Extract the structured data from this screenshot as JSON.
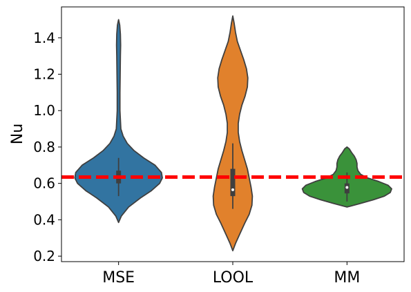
{
  "chart_data": {
    "type": "violin",
    "title": "",
    "xlabel": "",
    "ylabel": "Nu",
    "ylim": [
      0.17,
      1.57
    ],
    "yticks": [
      0.2,
      0.4,
      0.6,
      0.8,
      1.0,
      1.2,
      1.4
    ],
    "ytick_labels": [
      "0.2",
      "0.4",
      "0.6",
      "0.8",
      "1.0",
      "1.2",
      "1.4"
    ],
    "categories": [
      "MSE",
      "LOOL",
      "MM"
    ],
    "grid": false,
    "reference_line": {
      "y": 0.635,
      "color": "#ff0000",
      "style": "dashed"
    },
    "series": [
      {
        "category": "MSE",
        "color": "#3274a1",
        "min": 0.385,
        "max": 1.5,
        "q1": 0.6,
        "median": 0.635,
        "q3": 0.67,
        "whisker_low": 0.53,
        "whisker_high": 0.74,
        "density": [
          [
            0.385,
            0.0
          ],
          [
            0.42,
            0.06
          ],
          [
            0.47,
            0.22
          ],
          [
            0.52,
            0.48
          ],
          [
            0.56,
            0.72
          ],
          [
            0.6,
            0.9
          ],
          [
            0.63,
            0.96
          ],
          [
            0.66,
            0.94
          ],
          [
            0.7,
            0.8
          ],
          [
            0.74,
            0.55
          ],
          [
            0.78,
            0.34
          ],
          [
            0.82,
            0.19
          ],
          [
            0.86,
            0.1
          ],
          [
            0.9,
            0.05
          ],
          [
            1.0,
            0.03
          ],
          [
            1.1,
            0.03
          ],
          [
            1.2,
            0.035
          ],
          [
            1.3,
            0.04
          ],
          [
            1.36,
            0.045
          ],
          [
            1.42,
            0.04
          ],
          [
            1.47,
            0.025
          ],
          [
            1.5,
            0.0
          ]
        ]
      },
      {
        "category": "LOOL",
        "color": "#e1812c",
        "min": 0.23,
        "max": 1.52,
        "q1": 0.53,
        "median": 0.565,
        "q3": 0.68,
        "whisker_low": 0.46,
        "whisker_high": 0.82,
        "density": [
          [
            0.23,
            0.0
          ],
          [
            0.27,
            0.06
          ],
          [
            0.32,
            0.15
          ],
          [
            0.38,
            0.26
          ],
          [
            0.43,
            0.36
          ],
          [
            0.48,
            0.42
          ],
          [
            0.53,
            0.43
          ],
          [
            0.58,
            0.4
          ],
          [
            0.63,
            0.36
          ],
          [
            0.68,
            0.32
          ],
          [
            0.73,
            0.26
          ],
          [
            0.78,
            0.2
          ],
          [
            0.83,
            0.15
          ],
          [
            0.88,
            0.12
          ],
          [
            0.93,
            0.12
          ],
          [
            0.98,
            0.15
          ],
          [
            1.03,
            0.2
          ],
          [
            1.08,
            0.27
          ],
          [
            1.13,
            0.32
          ],
          [
            1.18,
            0.33
          ],
          [
            1.23,
            0.3
          ],
          [
            1.28,
            0.24
          ],
          [
            1.33,
            0.17
          ],
          [
            1.38,
            0.1
          ],
          [
            1.43,
            0.06
          ],
          [
            1.48,
            0.03
          ],
          [
            1.52,
            0.0
          ]
        ]
      },
      {
        "category": "MM",
        "color": "#3a923a",
        "min": 0.47,
        "max": 0.8,
        "q1": 0.545,
        "median": 0.578,
        "q3": 0.6,
        "whisker_low": 0.5,
        "whisker_high": 0.66,
        "density": [
          [
            0.47,
            0.0
          ],
          [
            0.49,
            0.3
          ],
          [
            0.51,
            0.58
          ],
          [
            0.53,
            0.82
          ],
          [
            0.55,
            0.95
          ],
          [
            0.57,
            0.98
          ],
          [
            0.59,
            0.9
          ],
          [
            0.61,
            0.7
          ],
          [
            0.63,
            0.45
          ],
          [
            0.65,
            0.3
          ],
          [
            0.67,
            0.24
          ],
          [
            0.69,
            0.22
          ],
          [
            0.71,
            0.22
          ],
          [
            0.73,
            0.2
          ],
          [
            0.75,
            0.16
          ],
          [
            0.77,
            0.1
          ],
          [
            0.79,
            0.05
          ],
          [
            0.8,
            0.0
          ]
        ]
      }
    ]
  }
}
